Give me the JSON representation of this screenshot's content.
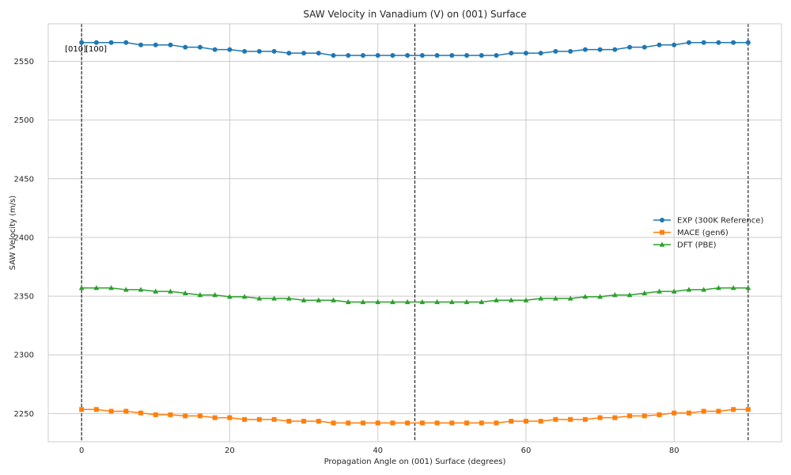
{
  "chart_data": {
    "type": "line",
    "title": "SAW Velocity in Vanadium (V) on (001) Surface",
    "xlabel": "Propagation Angle on (001) Surface (degrees)",
    "ylabel": "SAW Velocity (m/s)",
    "xlim": [
      -4.5,
      94.5
    ],
    "ylim": [
      2226,
      2582
    ],
    "xticks": [
      0,
      20,
      40,
      60,
      80
    ],
    "yticks": [
      2250,
      2300,
      2350,
      2400,
      2450,
      2500,
      2550
    ],
    "grid": true,
    "legend_position": "center-right",
    "vlines": [
      0,
      45,
      90
    ],
    "annotations": [
      {
        "text": "[010]",
        "x": 0
      },
      {
        "text": "[100]",
        "x": 0
      }
    ],
    "x": [
      0,
      2,
      4,
      6,
      8,
      10,
      12,
      14,
      16,
      18,
      20,
      22,
      24,
      26,
      28,
      30,
      32,
      34,
      36,
      38,
      40,
      42,
      44,
      46,
      48,
      50,
      52,
      54,
      56,
      58,
      60,
      62,
      64,
      66,
      68,
      70,
      72,
      74,
      76,
      78,
      80,
      82,
      84,
      86,
      88,
      90
    ],
    "series": [
      {
        "name": "EXP (300K Reference)",
        "color": "#1f77b4",
        "marker": "circle",
        "values": [
          2566,
          2566,
          2566,
          2566,
          2564,
          2564,
          2564,
          2562,
          2562,
          2560,
          2560,
          2558.5,
          2558.5,
          2558.5,
          2557,
          2557,
          2557,
          2555,
          2555,
          2555,
          2555,
          2555,
          2555,
          2555,
          2555,
          2555,
          2555,
          2555,
          2555,
          2557,
          2557,
          2557,
          2558.5,
          2558.5,
          2560,
          2560,
          2560,
          2562,
          2562,
          2564,
          2564,
          2566,
          2566,
          2566,
          2566,
          2566
        ]
      },
      {
        "name": "MACE (gen6)",
        "color": "#ff7f0e",
        "marker": "square",
        "values": [
          2253.5,
          2253.5,
          2252,
          2252,
          2250.5,
          2249,
          2249,
          2248,
          2248,
          2246.5,
          2246.5,
          2245,
          2245,
          2245,
          2243.5,
          2243.5,
          2243.5,
          2242,
          2242,
          2242,
          2242,
          2242,
          2242,
          2242,
          2242,
          2242,
          2242,
          2242,
          2242,
          2243.5,
          2243.5,
          2243.5,
          2245,
          2245,
          2245,
          2246.5,
          2246.5,
          2248,
          2248,
          2249,
          2250.5,
          2250.5,
          2252,
          2252,
          2253.5,
          2253.5
        ]
      },
      {
        "name": "DFT (PBE)",
        "color": "#2ca02c",
        "marker": "triangle",
        "values": [
          2357,
          2357,
          2357,
          2355.5,
          2355.5,
          2354,
          2354,
          2352.5,
          2351,
          2351,
          2349.5,
          2349.5,
          2348,
          2348,
          2348,
          2346.5,
          2346.5,
          2346.5,
          2345,
          2345,
          2345,
          2345,
          2345,
          2345,
          2345,
          2345,
          2345,
          2345,
          2346.5,
          2346.5,
          2346.5,
          2348,
          2348,
          2348,
          2349.5,
          2349.5,
          2351,
          2351,
          2352.5,
          2354,
          2354,
          2355.5,
          2355.5,
          2357,
          2357,
          2357
        ]
      }
    ]
  }
}
